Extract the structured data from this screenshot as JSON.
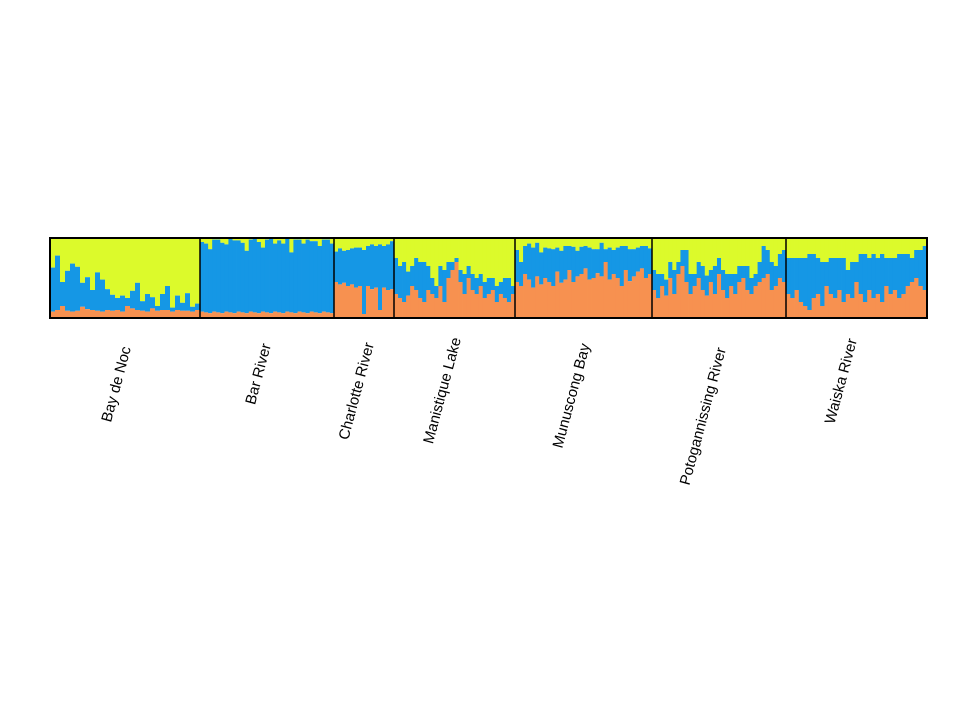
{
  "chart_data": {
    "type": "bar",
    "stacked": true,
    "normalized": true,
    "ylim": [
      0,
      1
    ],
    "title": "",
    "xlabel": "",
    "ylabel": "",
    "grid": false,
    "legend": "none",
    "cluster_colors": [
      "#f79150",
      "#1597e5",
      "#dcfa2b"
    ],
    "populations": [
      {
        "name": "Bay de Noc",
        "n": 30,
        "orange": [
          0.08,
          0.1,
          0.15,
          0.09,
          0.08,
          0.09,
          0.14,
          0.11,
          0.1,
          0.09,
          0.08,
          0.1,
          0.09,
          0.1,
          0.08,
          0.15,
          0.12,
          0.1,
          0.09,
          0.08,
          0.12,
          0.09,
          0.1,
          0.1,
          0.08,
          0.1,
          0.09,
          0.09,
          0.08,
          0.1
        ],
        "blue": [
          0.55,
          0.68,
          0.3,
          0.5,
          0.6,
          0.55,
          0.3,
          0.4,
          0.25,
          0.48,
          0.4,
          0.26,
          0.2,
          0.15,
          0.2,
          0.1,
          0.22,
          0.34,
          0.12,
          0.22,
          0.14,
          0.06,
          0.2,
          0.3,
          0.05,
          0.18,
          0.1,
          0.22,
          0.06,
          0.08
        ]
      },
      {
        "name": "Bar River",
        "n": 33,
        "orange": [
          0.08,
          0.07,
          0.06,
          0.08,
          0.07,
          0.06,
          0.08,
          0.07,
          0.06,
          0.08,
          0.07,
          0.06,
          0.08,
          0.07,
          0.06,
          0.08,
          0.07,
          0.06,
          0.08,
          0.07,
          0.06,
          0.08,
          0.07,
          0.06,
          0.08,
          0.07,
          0.06,
          0.08,
          0.07,
          0.06,
          0.08,
          0.07,
          0.06
        ],
        "blue": [
          0.87,
          0.86,
          0.8,
          0.9,
          0.91,
          0.88,
          0.84,
          0.92,
          0.91,
          0.89,
          0.87,
          0.78,
          0.9,
          0.92,
          0.89,
          0.8,
          0.91,
          0.93,
          0.85,
          0.9,
          0.87,
          0.91,
          0.75,
          0.92,
          0.9,
          0.86,
          0.92,
          0.88,
          0.89,
          0.84,
          0.9,
          0.91,
          0.87
        ]
      },
      {
        "name": "Charlotte River",
        "n": 15,
        "orange": [
          0.45,
          0.42,
          0.44,
          0.4,
          0.42,
          0.38,
          0.4,
          0.05,
          0.4,
          0.36,
          0.38,
          0.1,
          0.38,
          0.35,
          0.36
        ],
        "blue": [
          0.38,
          0.45,
          0.4,
          0.45,
          0.45,
          0.5,
          0.48,
          0.8,
          0.5,
          0.56,
          0.52,
          0.82,
          0.52,
          0.57,
          0.6
        ]
      },
      {
        "name": "Manistique Lake",
        "n": 30,
        "orange": [
          0.3,
          0.25,
          0.2,
          0.28,
          0.4,
          0.35,
          0.25,
          0.2,
          0.35,
          0.3,
          0.25,
          0.4,
          0.2,
          0.5,
          0.6,
          0.7,
          0.45,
          0.3,
          0.5,
          0.35,
          0.3,
          0.4,
          0.25,
          0.3,
          0.35,
          0.2,
          0.3,
          0.25,
          0.2,
          0.3
        ],
        "blue": [
          0.45,
          0.4,
          0.5,
          0.3,
          0.25,
          0.4,
          0.45,
          0.5,
          0.3,
          0.2,
          0.15,
          0.25,
          0.4,
          0.2,
          0.1,
          0.05,
          0.15,
          0.25,
          0.15,
          0.2,
          0.2,
          0.15,
          0.2,
          0.2,
          0.15,
          0.2,
          0.15,
          0.25,
          0.3,
          0.1
        ]
      },
      {
        "name": "Munuscong Bay",
        "n": 34,
        "orange": [
          0.45,
          0.4,
          0.55,
          0.48,
          0.38,
          0.52,
          0.42,
          0.5,
          0.45,
          0.4,
          0.58,
          0.44,
          0.48,
          0.6,
          0.45,
          0.52,
          0.55,
          0.62,
          0.48,
          0.5,
          0.56,
          0.52,
          0.7,
          0.48,
          0.55,
          0.5,
          0.4,
          0.6,
          0.46,
          0.52,
          0.58,
          0.62,
          0.5,
          0.55
        ],
        "blue": [
          0.4,
          0.3,
          0.35,
          0.45,
          0.5,
          0.42,
          0.4,
          0.38,
          0.42,
          0.46,
          0.3,
          0.4,
          0.42,
          0.3,
          0.44,
          0.32,
          0.34,
          0.28,
          0.4,
          0.36,
          0.3,
          0.42,
          0.16,
          0.4,
          0.3,
          0.38,
          0.5,
          0.3,
          0.4,
          0.34,
          0.3,
          0.28,
          0.4,
          0.32
        ]
      },
      {
        "name": "Potogannissing River",
        "n": 33,
        "orange": [
          0.35,
          0.25,
          0.4,
          0.28,
          0.5,
          0.3,
          0.55,
          0.65,
          0.45,
          0.3,
          0.4,
          0.5,
          0.35,
          0.28,
          0.45,
          0.3,
          0.55,
          0.35,
          0.25,
          0.4,
          0.3,
          0.45,
          0.5,
          0.35,
          0.3,
          0.4,
          0.45,
          0.5,
          0.55,
          0.35,
          0.4,
          0.5,
          0.45
        ],
        "blue": [
          0.25,
          0.3,
          0.15,
          0.2,
          0.2,
          0.3,
          0.15,
          0.2,
          0.4,
          0.25,
          0.15,
          0.2,
          0.3,
          0.25,
          0.15,
          0.35,
          0.2,
          0.25,
          0.3,
          0.15,
          0.25,
          0.2,
          0.15,
          0.3,
          0.2,
          0.15,
          0.25,
          0.4,
          0.3,
          0.35,
          0.25,
          0.3,
          0.4
        ]
      },
      {
        "name": "Waiska River",
        "n": 33,
        "orange": [
          0.3,
          0.25,
          0.35,
          0.2,
          0.15,
          0.1,
          0.25,
          0.3,
          0.15,
          0.4,
          0.3,
          0.25,
          0.35,
          0.2,
          0.3,
          0.25,
          0.45,
          0.3,
          0.2,
          0.35,
          0.25,
          0.3,
          0.2,
          0.4,
          0.3,
          0.35,
          0.25,
          0.3,
          0.4,
          0.45,
          0.5,
          0.4,
          0.35
        ],
        "blue": [
          0.45,
          0.5,
          0.4,
          0.55,
          0.6,
          0.7,
          0.55,
          0.45,
          0.55,
          0.3,
          0.45,
          0.5,
          0.4,
          0.55,
          0.3,
          0.45,
          0.25,
          0.5,
          0.6,
          0.4,
          0.55,
          0.45,
          0.6,
          0.35,
          0.45,
          0.4,
          0.55,
          0.5,
          0.4,
          0.3,
          0.35,
          0.45,
          0.55
        ]
      }
    ]
  }
}
